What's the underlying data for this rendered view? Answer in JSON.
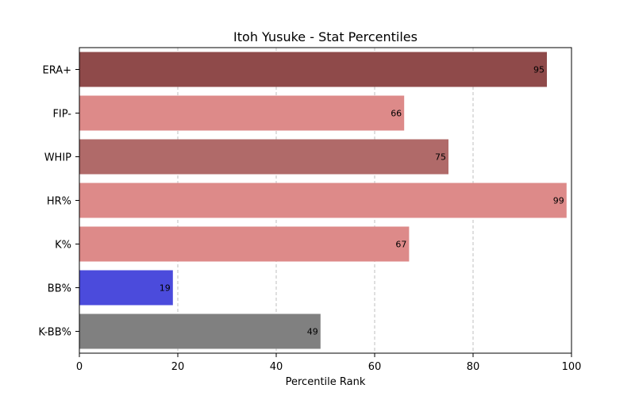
{
  "chart_data": {
    "type": "bar",
    "orientation": "horizontal",
    "title": "Itoh Yusuke - Stat Percentiles",
    "xlabel": "Percentile Rank",
    "ylabel": "",
    "xlim": [
      0,
      100
    ],
    "xticks": [
      0,
      20,
      40,
      60,
      80,
      100
    ],
    "grid": "x dashed",
    "categories": [
      "ERA+",
      "FIP-",
      "WHIP",
      "HR%",
      "K%",
      "BB%",
      "K-BB%"
    ],
    "values": [
      95,
      66,
      75,
      99,
      67,
      19,
      49
    ],
    "colors": [
      "#8f4a4a",
      "#dd8a89",
      "#b06a69",
      "#dd8a89",
      "#dd8a89",
      "#4b4bdc",
      "#808080"
    ]
  }
}
